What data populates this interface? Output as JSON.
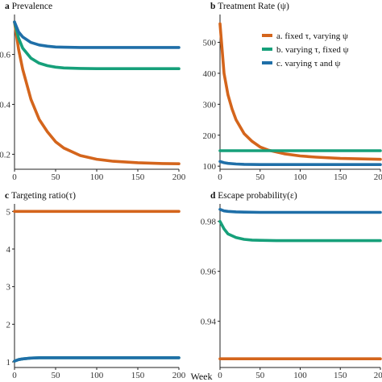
{
  "figure": {
    "xlabel": "Week"
  },
  "colors": {
    "a": "#d4651c",
    "b": "#16a07a",
    "c": "#1f6fa8"
  },
  "legend": {
    "a": "a. fixed τ, varying ψ",
    "b": "b. varying τ, fixed ψ",
    "c": "c. varying τ and ψ"
  },
  "chart_data": [
    {
      "type": "line",
      "letter": "a",
      "title": "Prevalence",
      "xlim": [
        0,
        200
      ],
      "ylim": [
        0.14,
        0.76
      ],
      "x_ticks": [
        0,
        50,
        100,
        150,
        200
      ],
      "y_ticks": [
        0.2,
        0.4,
        0.6
      ],
      "y_tick_labels": [
        "0.2",
        "0.4",
        "0.6"
      ],
      "legend_position": "none",
      "series": [
        {
          "key": "a",
          "x": [
            0,
            5,
            10,
            20,
            30,
            40,
            50,
            60,
            80,
            100,
            120,
            150,
            180,
            200
          ],
          "y": [
            0.73,
            0.62,
            0.54,
            0.42,
            0.34,
            0.29,
            0.25,
            0.225,
            0.195,
            0.18,
            0.172,
            0.166,
            0.163,
            0.162
          ]
        },
        {
          "key": "b",
          "x": [
            0,
            5,
            10,
            20,
            30,
            40,
            50,
            60,
            80,
            100,
            150,
            200
          ],
          "y": [
            0.73,
            0.665,
            0.625,
            0.585,
            0.565,
            0.555,
            0.549,
            0.546,
            0.544,
            0.543,
            0.543,
            0.543
          ]
        },
        {
          "key": "c",
          "x": [
            0,
            5,
            10,
            20,
            30,
            40,
            50,
            60,
            80,
            100,
            150,
            200
          ],
          "y": [
            0.73,
            0.69,
            0.67,
            0.648,
            0.638,
            0.633,
            0.63,
            0.629,
            0.628,
            0.628,
            0.628,
            0.628
          ]
        }
      ]
    },
    {
      "type": "line",
      "letter": "b",
      "title": "Treatment Rate (ψ)",
      "xlim": [
        0,
        200
      ],
      "ylim": [
        90,
        590
      ],
      "x_ticks": [
        0,
        50,
        100,
        150,
        200
      ],
      "y_ticks": [
        100,
        200,
        300,
        400,
        500
      ],
      "y_tick_labels": [
        "100",
        "200",
        "300",
        "400",
        "500"
      ],
      "legend_position": "top-right",
      "series": [
        {
          "key": "a",
          "x": [
            0,
            5,
            10,
            15,
            20,
            30,
            40,
            50,
            60,
            80,
            100,
            120,
            150,
            200
          ],
          "y": [
            560,
            400,
            330,
            285,
            250,
            205,
            180,
            162,
            152,
            140,
            133,
            129,
            125,
            122
          ]
        },
        {
          "key": "b",
          "x": [
            0,
            200
          ],
          "y": [
            150,
            150
          ]
        },
        {
          "key": "c",
          "x": [
            0,
            5,
            10,
            20,
            30,
            50,
            100,
            150,
            200
          ],
          "y": [
            115,
            111,
            109,
            107,
            106,
            105,
            105,
            105,
            105
          ]
        }
      ]
    },
    {
      "type": "line",
      "letter": "c",
      "title": "Targeting ratio(τ)",
      "xlim": [
        0,
        200
      ],
      "ylim": [
        0.85,
        5.2
      ],
      "x_ticks": [
        0,
        50,
        100,
        150,
        200
      ],
      "y_ticks": [
        1,
        2,
        3,
        4,
        5
      ],
      "y_tick_labels": [
        "1",
        "2",
        "3",
        "4",
        "5"
      ],
      "legend_position": "none",
      "series": [
        {
          "key": "a",
          "x": [
            0,
            200
          ],
          "y": [
            5,
            5
          ]
        },
        {
          "key": "b",
          "x": [
            0,
            5,
            10,
            20,
            30,
            50,
            100,
            150,
            200
          ],
          "y": [
            1.02,
            1.06,
            1.08,
            1.1,
            1.11,
            1.11,
            1.11,
            1.11,
            1.11
          ]
        },
        {
          "key": "c",
          "x": [
            0,
            5,
            10,
            20,
            30,
            50,
            100,
            150,
            200
          ],
          "y": [
            1.02,
            1.06,
            1.08,
            1.1,
            1.11,
            1.11,
            1.11,
            1.11,
            1.11
          ]
        }
      ]
    },
    {
      "type": "line",
      "letter": "d",
      "title": "Escape probability(ε)",
      "xlim": [
        0,
        200
      ],
      "ylim": [
        0.9215,
        0.987
      ],
      "x_ticks": [
        0,
        50,
        100,
        150,
        200
      ],
      "y_ticks": [
        0.94,
        0.96,
        0.98
      ],
      "y_tick_labels": [
        "0.94",
        "0.96",
        "0.98"
      ],
      "legend_position": "none",
      "series": [
        {
          "key": "a",
          "x": [
            0,
            200
          ],
          "y": [
            0.925,
            0.925
          ]
        },
        {
          "key": "b",
          "x": [
            0,
            5,
            10,
            20,
            30,
            40,
            50,
            70,
            100,
            150,
            200
          ],
          "y": [
            0.98,
            0.977,
            0.975,
            0.9735,
            0.9728,
            0.9725,
            0.9724,
            0.9723,
            0.9723,
            0.9723,
            0.9723
          ]
        },
        {
          "key": "c",
          "x": [
            0,
            5,
            10,
            20,
            30,
            50,
            100,
            150,
            200
          ],
          "y": [
            0.9848,
            0.9842,
            0.984,
            0.9838,
            0.9837,
            0.9836,
            0.9836,
            0.9836,
            0.9836
          ]
        }
      ]
    }
  ]
}
